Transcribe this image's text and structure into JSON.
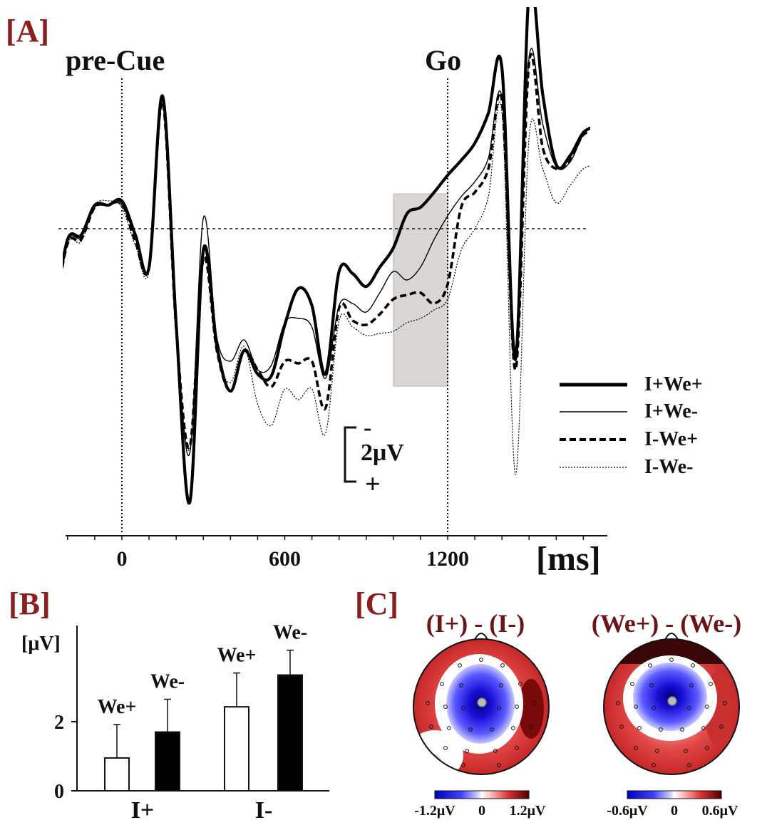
{
  "panels": {
    "a": "[A]",
    "b": "[B]",
    "c": "[C]"
  },
  "chart_data": [
    {
      "type": "line",
      "panel": "A",
      "xlabel": "[ms]",
      "xticks": [
        0,
        600,
        1200
      ],
      "xlim": [
        -250,
        2150
      ],
      "ylim_uV": [
        -13,
        7
      ],
      "y_axis_inverted": "negative up",
      "events": [
        {
          "label": "pre-Cue",
          "x": 0
        },
        {
          "label": "Go",
          "x": 1200
        }
      ],
      "highlight_window": [
        1000,
        1200
      ],
      "scale_bar": {
        "label": "2μV",
        "neg": "-",
        "pos": "+"
      },
      "legend": {
        "placement": "right",
        "entries": [
          "I+We+",
          "I+We-",
          "I-We+",
          "I-We-"
        ]
      },
      "x": [
        -250,
        -200,
        -150,
        -100,
        -50,
        0,
        50,
        100,
        150,
        200,
        250,
        300,
        350,
        400,
        450,
        500,
        550,
        600,
        650,
        700,
        750,
        800,
        850,
        900,
        950,
        1000,
        1050,
        1100,
        1150,
        1200,
        1250,
        1300,
        1350,
        1400,
        1450,
        1500,
        1550,
        1600,
        1650,
        1700,
        1750
      ],
      "series": [
        {
          "name": "I+We+",
          "style": "thick-solid",
          "values": [
            -4.0,
            -0.5,
            -0.3,
            1.1,
            1.1,
            1.3,
            -0.3,
            -1.8,
            6.2,
            -4.5,
            -12.8,
            -1.0,
            -5.5,
            -7.6,
            -5.7,
            -6.8,
            -6.9,
            -4.5,
            -2.8,
            -3.6,
            -6.8,
            -2.0,
            -2.1,
            -2.7,
            -1.8,
            -0.9,
            0.7,
            1.0,
            1.7,
            2.5,
            3.2,
            4.0,
            5.4,
            7.5,
            -6.1,
            11.2,
            6.3,
            3.0,
            3.4,
            4.5,
            4.8
          ]
        },
        {
          "name": "I+We-",
          "style": "thin-solid",
          "values": [
            -4.1,
            -0.6,
            -0.4,
            1.0,
            1.1,
            1.1,
            -0.4,
            -1.9,
            6.0,
            -4.6,
            -10.5,
            0.5,
            -5.1,
            -6.2,
            -5.2,
            -6.6,
            -6.4,
            -4.4,
            -4.2,
            -4.6,
            -7.0,
            -3.6,
            -3.5,
            -3.9,
            -3.0,
            -2.0,
            -2.4,
            -1.8,
            -0.5,
            0.6,
            1.5,
            2.2,
            3.3,
            6.1,
            -5.6,
            8.0,
            4.9,
            2.9,
            3.1,
            4.4,
            4.9
          ]
        },
        {
          "name": "I-We+",
          "style": "thick-dashed",
          "values": [
            -4.1,
            -0.7,
            -0.5,
            1.0,
            1.1,
            1.2,
            -0.6,
            -1.8,
            5.9,
            -4.7,
            -10.2,
            -1.4,
            -5.7,
            -7.6,
            -5.7,
            -6.6,
            -7.4,
            -6.2,
            -6.3,
            -6.2,
            -8.4,
            -3.7,
            -4.3,
            -4.5,
            -4.0,
            -3.3,
            -3.1,
            -3.0,
            -3.5,
            -2.6,
            1.0,
            1.7,
            2.8,
            6.0,
            -6.6,
            7.8,
            3.8,
            2.8,
            3.2,
            4.4,
            4.5
          ]
        },
        {
          "name": "I-We-",
          "style": "thin-dotted",
          "values": [
            -4.2,
            -0.7,
            -0.6,
            1.1,
            1.3,
            1.0,
            -0.8,
            -2.0,
            5.8,
            -4.8,
            -10.3,
            -1.1,
            -5.8,
            -7.2,
            -5.5,
            -8.2,
            -9.2,
            -7.5,
            -8.0,
            -7.5,
            -9.6,
            -4.3,
            -4.6,
            -5.0,
            -4.9,
            -4.8,
            -4.4,
            -4.2,
            -3.8,
            -3.3,
            -1.0,
            0.0,
            1.5,
            5.4,
            -11.5,
            4.3,
            2.8,
            1.2,
            2.0,
            2.8,
            3.0
          ]
        }
      ]
    },
    {
      "type": "bar",
      "panel": "B",
      "ylabel": "[μV]",
      "yticks": [
        0,
        2
      ],
      "ylim": [
        0,
        4.3
      ],
      "groups": [
        {
          "name": "I+",
          "bars": [
            {
              "label": "We+",
              "value": 0.95,
              "error": 0.97,
              "fill": "#ffffff"
            },
            {
              "label": "We-",
              "value": 1.7,
              "error": 0.95,
              "fill": "#000000"
            }
          ]
        },
        {
          "name": "I-",
          "bars": [
            {
              "label": "We+",
              "value": 2.43,
              "error": 0.98,
              "fill": "#ffffff"
            },
            {
              "label": "We-",
              "value": 3.35,
              "error": 0.72,
              "fill": "#000000"
            }
          ]
        }
      ]
    }
  ],
  "topomaps": [
    {
      "title": "(I+) - (I-)",
      "cbar": {
        "min": "-1.2μV",
        "mid": "0",
        "max": "1.2μV"
      }
    },
    {
      "title": "(We+) - (We-)",
      "cbar": {
        "min": "-0.6μV",
        "mid": "0",
        "max": "0.6μV"
      }
    }
  ],
  "colors": {
    "panel_label": "#8b1e1e",
    "topo_title": "#6a1616",
    "highlight": "#d9d6d3",
    "negative": "#1a10d8",
    "positive": "#c01010"
  }
}
